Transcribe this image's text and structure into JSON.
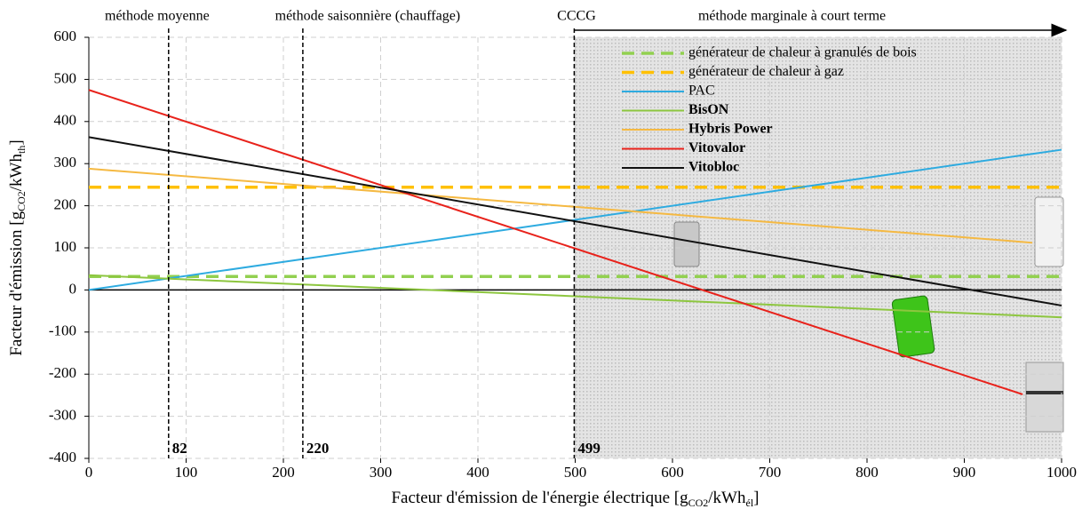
{
  "chart_data": {
    "type": "line",
    "x_label": [
      "Facteur d'émission de l'énergie électrique  [g",
      "CO2",
      "/kWh",
      "él",
      "]"
    ],
    "y_label": [
      "Facteur d'émission [g",
      "CO2",
      "/kWh",
      "th",
      "]"
    ],
    "x": [
      0,
      960,
      970,
      1000
    ],
    "xlim": [
      0,
      1000
    ],
    "xticks": [
      0,
      100,
      200,
      300,
      400,
      500,
      600,
      700,
      800,
      900,
      1000
    ],
    "ylim": [
      -400,
      600
    ],
    "yticks": [
      -400,
      -300,
      -200,
      -100,
      0,
      100,
      200,
      300,
      400,
      500,
      600
    ],
    "grid": true,
    "series": [
      {
        "name": "générateur de chaleur à granulés de bois",
        "color": "#92d050",
        "dashed": true,
        "bold": false,
        "values": [
          32,
          32,
          32,
          32
        ]
      },
      {
        "name": "générateur de chaleur à gaz",
        "color": "#ffc000",
        "dashed": true,
        "bold": false,
        "values": [
          244,
          244,
          244,
          244
        ]
      },
      {
        "name": "PAC",
        "color": "#2eabe0",
        "dashed": false,
        "bold": false,
        "values": [
          0,
          320,
          323,
          333
        ]
      },
      {
        "name": "BisON",
        "color": "#8dc63f",
        "dashed": false,
        "bold": true,
        "values": [
          35,
          -61,
          -62,
          -65
        ]
      },
      {
        "name": "Hybris Power",
        "color": "#f5b942",
        "dashed": false,
        "bold": true,
        "values": [
          288,
          114,
          112,
          null
        ]
      },
      {
        "name": "Vitovalor",
        "color": "#e8221b",
        "dashed": false,
        "bold": true,
        "values": [
          475,
          -248,
          null,
          null
        ]
      },
      {
        "name": "Vitobloc",
        "color": "#111111",
        "dashed": false,
        "bold": true,
        "values": [
          363,
          -21,
          -25,
          -37
        ]
      }
    ],
    "vlines": [
      {
        "value": 82,
        "label": "82"
      },
      {
        "value": 220,
        "label": "220"
      },
      {
        "value": 499,
        "label": "499"
      }
    ],
    "shaded_from": 499,
    "regions": [
      {
        "label": "méthode moyenne",
        "x": 0
      },
      {
        "label": "méthode saisonnière (chauffage)",
        "x": 175
      },
      {
        "label": "CCCG",
        "x": 465
      },
      {
        "label": "méthode marginale à court terme",
        "x": 610
      }
    ]
  }
}
